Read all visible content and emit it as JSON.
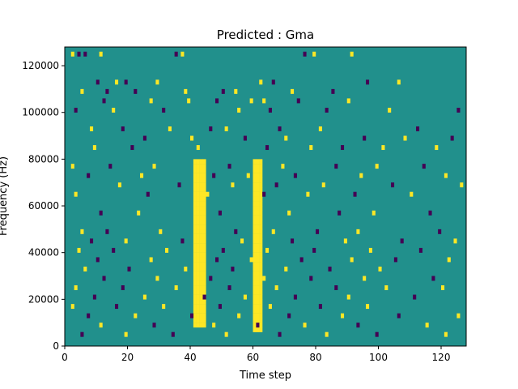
{
  "chart_data": {
    "type": "heatmap",
    "title": "Predicted : Gma",
    "xlabel": "Time step",
    "ylabel": "Frequency (Hz)",
    "xlim": [
      0,
      128
    ],
    "ylim": [
      0,
      128000
    ],
    "x_ticks": [
      0,
      20,
      40,
      60,
      80,
      100,
      120
    ],
    "x_tick_labels": [
      "0",
      "20",
      "40",
      "60",
      "80",
      "100",
      "120"
    ],
    "y_ticks": [
      0,
      20000,
      40000,
      60000,
      80000,
      100000,
      120000
    ],
    "y_tick_labels": [
      "0",
      "20000",
      "40000",
      "60000",
      "80000",
      "100000",
      "120000"
    ],
    "n_time_steps": 128,
    "n_frequency_bins": 64,
    "frequency_bin_width_hz": 2000,
    "value_levels": [
      -1,
      0,
      1
    ],
    "colors": {
      "-1": "#440154",
      "0": "#21908c",
      "1": "#fde725"
    },
    "background_value": 0,
    "grid": false,
    "continuous_yellow_bands": [
      {
        "x_range": [
          41,
          44
        ],
        "y_range_hz": [
          8000,
          80000
        ]
      },
      {
        "x_range": [
          60,
          62
        ],
        "y_range_hz": [
          6000,
          80000
        ]
      }
    ],
    "sparse_cells": [
      [
        2,
        124000,
        1
      ],
      [
        4,
        124000,
        -1
      ],
      [
        6,
        124000,
        -1
      ],
      [
        11,
        124000,
        1
      ],
      [
        35,
        124000,
        -1
      ],
      [
        37,
        124000,
        1
      ],
      [
        76,
        124000,
        -1
      ],
      [
        79,
        124000,
        1
      ],
      [
        91,
        124000,
        1
      ],
      [
        10,
        112000,
        -1
      ],
      [
        16,
        112000,
        1
      ],
      [
        19,
        112000,
        -1
      ],
      [
        29,
        112000,
        1
      ],
      [
        62,
        112000,
        1
      ],
      [
        66,
        112000,
        -1
      ],
      [
        96,
        112000,
        -1
      ],
      [
        106,
        112000,
        1
      ],
      [
        5,
        108000,
        1
      ],
      [
        13,
        108000,
        -1
      ],
      [
        22,
        108000,
        -1
      ],
      [
        38,
        108000,
        1
      ],
      [
        50,
        108000,
        -1
      ],
      [
        54,
        108000,
        1
      ],
      [
        72,
        108000,
        1
      ],
      [
        85,
        108000,
        -1
      ],
      [
        12,
        104000,
        -1
      ],
      [
        27,
        104000,
        1
      ],
      [
        39,
        104000,
        1
      ],
      [
        48,
        104000,
        -1
      ],
      [
        59,
        104000,
        1
      ],
      [
        63,
        104000,
        1
      ],
      [
        74,
        104000,
        -1
      ],
      [
        90,
        104000,
        1
      ],
      [
        3,
        100000,
        -1
      ],
      [
        15,
        100000,
        1
      ],
      [
        31,
        100000,
        -1
      ],
      [
        55,
        100000,
        1
      ],
      [
        65,
        100000,
        -1
      ],
      [
        83,
        100000,
        -1
      ],
      [
        103,
        100000,
        1
      ],
      [
        125,
        100000,
        -1
      ],
      [
        8,
        92000,
        1
      ],
      [
        18,
        92000,
        -1
      ],
      [
        33,
        92000,
        1
      ],
      [
        46,
        92000,
        -1
      ],
      [
        51,
        92000,
        1
      ],
      [
        68,
        92000,
        -1
      ],
      [
        81,
        92000,
        1
      ],
      [
        112,
        92000,
        -1
      ],
      [
        25,
        88000,
        -1
      ],
      [
        40,
        88000,
        1
      ],
      [
        57,
        88000,
        -1
      ],
      [
        70,
        88000,
        1
      ],
      [
        95,
        88000,
        -1
      ],
      [
        108,
        88000,
        1
      ],
      [
        123,
        88000,
        -1
      ],
      [
        9,
        84000,
        1
      ],
      [
        21,
        84000,
        -1
      ],
      [
        42,
        84000,
        1
      ],
      [
        64,
        84000,
        -1
      ],
      [
        78,
        84000,
        1
      ],
      [
        88,
        84000,
        -1
      ],
      [
        101,
        84000,
        1
      ],
      [
        118,
        84000,
        1
      ],
      [
        2,
        76000,
        1
      ],
      [
        14,
        76000,
        -1
      ],
      [
        28,
        76000,
        1
      ],
      [
        52,
        76000,
        -1
      ],
      [
        69,
        76000,
        1
      ],
      [
        86,
        76000,
        -1
      ],
      [
        99,
        76000,
        1
      ],
      [
        114,
        76000,
        -1
      ],
      [
        7,
        72000,
        -1
      ],
      [
        24,
        72000,
        1
      ],
      [
        47,
        72000,
        -1
      ],
      [
        58,
        72000,
        1
      ],
      [
        73,
        72000,
        -1
      ],
      [
        94,
        72000,
        1
      ],
      [
        121,
        72000,
        1
      ],
      [
        17,
        68000,
        1
      ],
      [
        36,
        68000,
        -1
      ],
      [
        53,
        68000,
        1
      ],
      [
        67,
        68000,
        -1
      ],
      [
        82,
        68000,
        1
      ],
      [
        104,
        68000,
        -1
      ],
      [
        126,
        68000,
        1
      ],
      [
        3,
        64000,
        1
      ],
      [
        26,
        64000,
        -1
      ],
      [
        45,
        64000,
        1
      ],
      [
        63,
        64000,
        -1
      ],
      [
        77,
        64000,
        1
      ],
      [
        92,
        64000,
        -1
      ],
      [
        110,
        64000,
        1
      ],
      [
        11,
        56000,
        -1
      ],
      [
        23,
        56000,
        1
      ],
      [
        49,
        56000,
        -1
      ],
      [
        71,
        56000,
        1
      ],
      [
        87,
        56000,
        -1
      ],
      [
        98,
        56000,
        1
      ],
      [
        116,
        56000,
        -1
      ],
      [
        5,
        48000,
        1
      ],
      [
        13,
        48000,
        -1
      ],
      [
        30,
        48000,
        1
      ],
      [
        54,
        48000,
        -1
      ],
      [
        66,
        48000,
        1
      ],
      [
        80,
        48000,
        -1
      ],
      [
        93,
        48000,
        1
      ],
      [
        119,
        48000,
        -1
      ],
      [
        8,
        44000,
        -1
      ],
      [
        19,
        44000,
        1
      ],
      [
        37,
        44000,
        -1
      ],
      [
        56,
        44000,
        1
      ],
      [
        72,
        44000,
        -1
      ],
      [
        89,
        44000,
        1
      ],
      [
        107,
        44000,
        -1
      ],
      [
        124,
        44000,
        1
      ],
      [
        4,
        40000,
        1
      ],
      [
        15,
        40000,
        -1
      ],
      [
        32,
        40000,
        1
      ],
      [
        50,
        40000,
        -1
      ],
      [
        64,
        40000,
        1
      ],
      [
        79,
        40000,
        -1
      ],
      [
        97,
        40000,
        1
      ],
      [
        113,
        40000,
        -1
      ],
      [
        10,
        36000,
        -1
      ],
      [
        27,
        36000,
        1
      ],
      [
        48,
        36000,
        -1
      ],
      [
        59,
        36000,
        1
      ],
      [
        75,
        36000,
        -1
      ],
      [
        91,
        36000,
        1
      ],
      [
        105,
        36000,
        -1
      ],
      [
        122,
        36000,
        1
      ],
      [
        6,
        32000,
        1
      ],
      [
        20,
        32000,
        -1
      ],
      [
        38,
        32000,
        1
      ],
      [
        53,
        32000,
        -1
      ],
      [
        70,
        32000,
        1
      ],
      [
        84,
        32000,
        -1
      ],
      [
        100,
        32000,
        1
      ],
      [
        12,
        28000,
        -1
      ],
      [
        29,
        28000,
        1
      ],
      [
        46,
        28000,
        -1
      ],
      [
        63,
        28000,
        1
      ],
      [
        78,
        28000,
        -1
      ],
      [
        95,
        28000,
        1
      ],
      [
        117,
        28000,
        -1
      ],
      [
        3,
        24000,
        1
      ],
      [
        18,
        24000,
        -1
      ],
      [
        35,
        24000,
        1
      ],
      [
        52,
        24000,
        -1
      ],
      [
        67,
        24000,
        1
      ],
      [
        86,
        24000,
        -1
      ],
      [
        102,
        24000,
        1
      ],
      [
        120,
        24000,
        1
      ],
      [
        9,
        20000,
        -1
      ],
      [
        25,
        20000,
        1
      ],
      [
        44,
        20000,
        -1
      ],
      [
        57,
        20000,
        1
      ],
      [
        73,
        20000,
        -1
      ],
      [
        90,
        20000,
        1
      ],
      [
        111,
        20000,
        -1
      ],
      [
        2,
        16000,
        1
      ],
      [
        16,
        16000,
        -1
      ],
      [
        31,
        16000,
        1
      ],
      [
        49,
        16000,
        -1
      ],
      [
        65,
        16000,
        1
      ],
      [
        81,
        16000,
        -1
      ],
      [
        96,
        16000,
        1
      ],
      [
        7,
        12000,
        -1
      ],
      [
        22,
        12000,
        1
      ],
      [
        40,
        12000,
        -1
      ],
      [
        55,
        12000,
        1
      ],
      [
        71,
        12000,
        -1
      ],
      [
        88,
        12000,
        1
      ],
      [
        106,
        12000,
        -1
      ],
      [
        125,
        12000,
        1
      ],
      [
        11,
        8000,
        1
      ],
      [
        28,
        8000,
        -1
      ],
      [
        47,
        8000,
        1
      ],
      [
        61,
        8000,
        -1
      ],
      [
        76,
        8000,
        1
      ],
      [
        93,
        8000,
        -1
      ],
      [
        115,
        8000,
        1
      ],
      [
        5,
        4000,
        -1
      ],
      [
        19,
        4000,
        1
      ],
      [
        34,
        4000,
        -1
      ],
      [
        51,
        4000,
        1
      ],
      [
        68,
        4000,
        -1
      ],
      [
        83,
        4000,
        1
      ],
      [
        99,
        4000,
        -1
      ],
      [
        121,
        4000,
        1
      ]
    ]
  }
}
